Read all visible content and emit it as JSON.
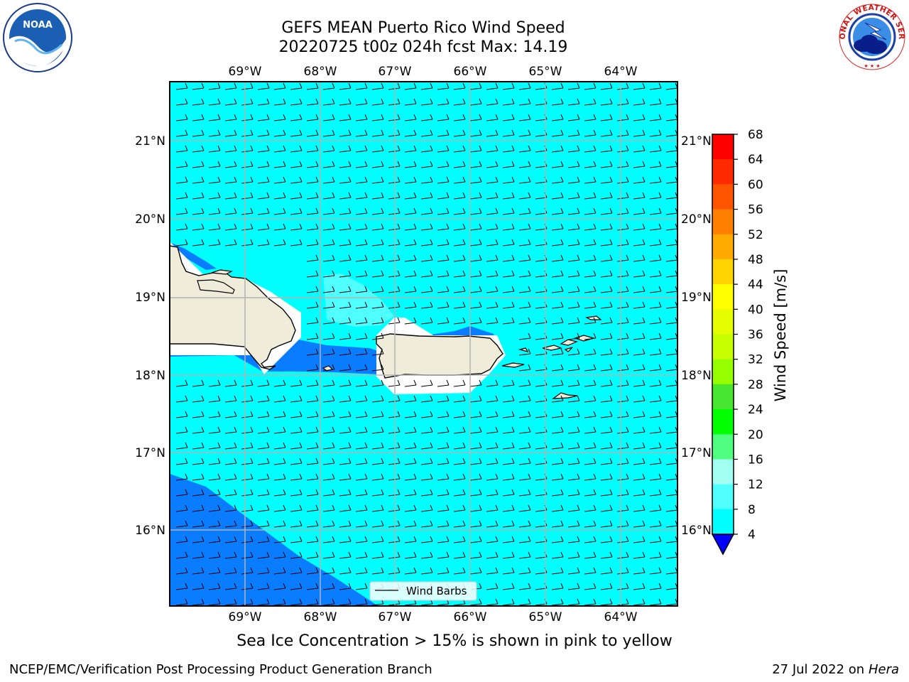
{
  "title": {
    "line1": "GEFS MEAN Puerto Rico Wind Speed",
    "line2": "20220725 t00z 024h fcst   Max: 14.19"
  },
  "logos": {
    "left": {
      "icon": "noaa-logo",
      "text": "NOAA"
    },
    "right": {
      "icon": "nws-logo",
      "text": "NATIONAL WEATHER SERVICE"
    }
  },
  "map": {
    "lon_labels": [
      "69°W",
      "68°W",
      "67°W",
      "66°W",
      "65°W",
      "64°W"
    ],
    "lat_labels": [
      "21°N",
      "20°N",
      "19°N",
      "18°N",
      "17°N",
      "16°N"
    ],
    "legend_label": "Wind Barbs",
    "background_color": "#00ffff",
    "land_color": "#efedd9",
    "low_wind_color": "#0a7cff"
  },
  "colorbar": {
    "label": "Wind Speed [m/s]",
    "ticks": [
      "68",
      "64",
      "60",
      "56",
      "52",
      "48",
      "44",
      "40",
      "36",
      "32",
      "28",
      "24",
      "20",
      "16",
      "12",
      "8",
      "4"
    ],
    "colors": [
      "#ff0000",
      "#ff2a00",
      "#ff5500",
      "#ff8000",
      "#ffaa00",
      "#ffd400",
      "#ffff00",
      "#e6ff00",
      "#c8ff00",
      "#96ff00",
      "#48e632",
      "#00ff00",
      "#50ff80",
      "#a0fff0",
      "#50ffff",
      "#00ffff",
      "#0a7cff"
    ],
    "extend_color": "#0000ff"
  },
  "caption": "Sea Ice Concentration > 15% is shown in pink to yellow",
  "footer": {
    "left": "NCEP/EMC/Verification Post Processing Product Generation Branch",
    "right_prefix": "27 Jul 2022 on ",
    "right_host": "Hera"
  }
}
